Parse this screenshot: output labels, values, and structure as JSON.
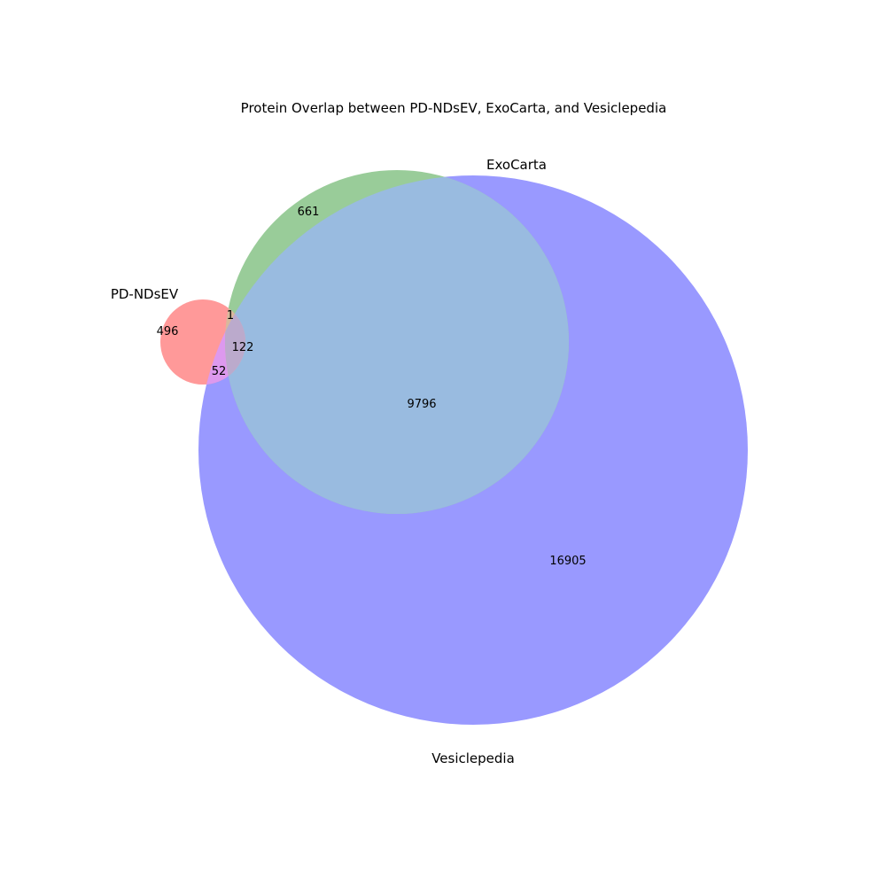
{
  "title": "Protein Overlap between PD-NDsEV, ExoCarta, and Vesiclepedia",
  "sets": [
    {
      "id": "pd",
      "label": "PD-NDsEV",
      "color": "#ff9999"
    },
    {
      "id": "exo",
      "label": "ExoCarta",
      "color": "#99cc99"
    },
    {
      "id": "ves",
      "label": "Vesiclepedia",
      "color": "#9999ff"
    }
  ],
  "regions": {
    "pd_only": "496",
    "exo_only": "661",
    "ves_only": "16905",
    "pd_exo": "1",
    "pd_ves": "52",
    "exo_ves": "9796",
    "pd_exo_ves": "122"
  },
  "overlap_colors": {
    "exo_ves": "#99bbe0",
    "pd_ves": "#dd99ee",
    "pd_exo": "#d8b89c",
    "pd_exo_ves": "#bbaacc"
  }
}
